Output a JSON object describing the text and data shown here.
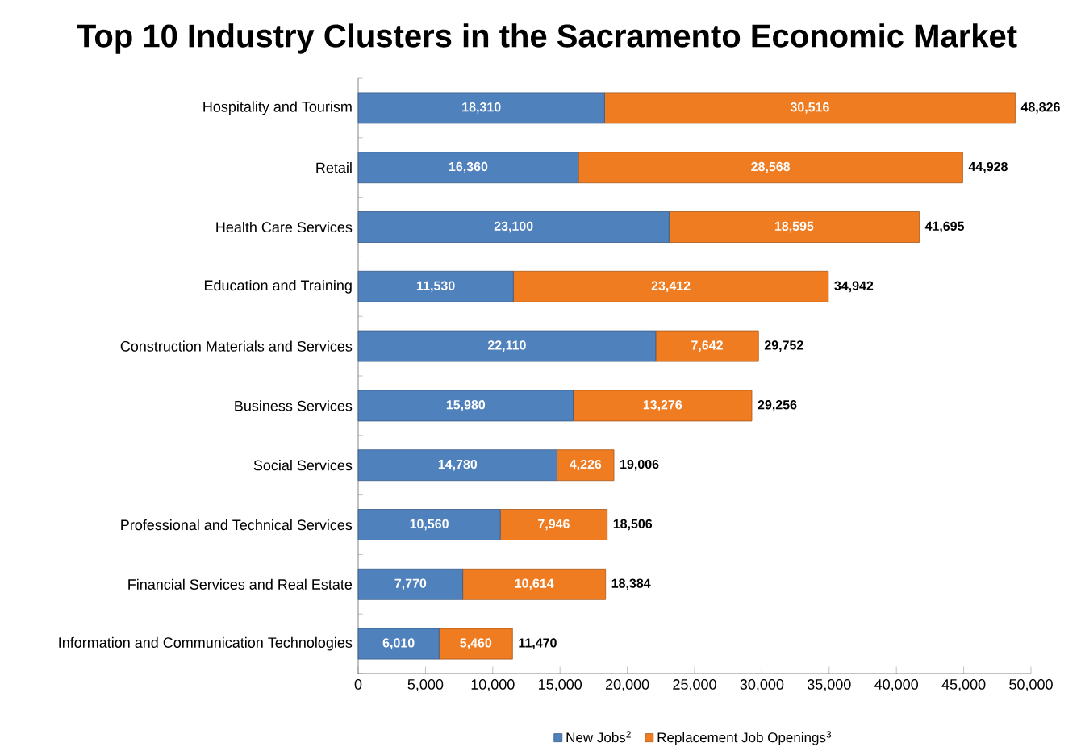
{
  "chart_data": {
    "type": "bar",
    "orientation": "horizontal",
    "stacked": true,
    "title": "Top 10 Industry Clusters in the Sacramento Economic Market",
    "categories": [
      "Hospitality and Tourism",
      "Retail",
      "Health Care Services",
      "Education and Training",
      "Construction Materials and Services",
      "Business Services",
      "Social Services",
      "Professional and Technical Services",
      "Financial Services and Real Estate",
      "Information and Communication Technologies"
    ],
    "series": [
      {
        "name": "New Jobs$^{2}$",
        "color": "#4f81bd",
        "values": [
          18310,
          16360,
          23100,
          11530,
          22110,
          15980,
          14780,
          10560,
          7770,
          6010
        ],
        "value_labels": [
          "18,310",
          "16,360",
          "23,100",
          "11,530",
          "22,110",
          "15,980",
          "14,780",
          "10,560",
          "7,770",
          "6,010"
        ]
      },
      {
        "name": "Replacement Job Openings$^{3}$",
        "color": "#f07c22",
        "values": [
          30516,
          28568,
          18595,
          23412,
          7642,
          13276,
          4226,
          7946,
          10614,
          5460
        ],
        "value_labels": [
          "30,516",
          "28,568",
          "18,595",
          "23,412",
          "7,642",
          "13,276",
          "4,226",
          "7,946",
          "10,614",
          "5,460"
        ]
      }
    ],
    "totals": [
      "48,826",
      "44,928",
      "41,695",
      "34,942",
      "29,752",
      "29,256",
      "19,006",
      "18,506",
      "18,384",
      "11,470"
    ],
    "xlim": [
      0,
      50000
    ],
    "xticks": [
      0,
      {
        "value": 5000,
        "label": "5,000"
      },
      {
        "value": 10000,
        "label": "10,000"
      },
      {
        "value": 15000,
        "label": "15,000"
      },
      {
        "value": 20000,
        "label": "20,000"
      },
      {
        "value": 25000,
        "label": "25,000"
      },
      {
        "value": 30000,
        "label": "30,000"
      },
      {
        "value": 35000,
        "label": "35,000"
      },
      {
        "value": 40000,
        "label": "40,000"
      },
      {
        "value": 45000,
        "label": "45,000"
      },
      {
        "value": 50000,
        "label": "50,000"
      }
    ],
    "legend": "bottom"
  }
}
